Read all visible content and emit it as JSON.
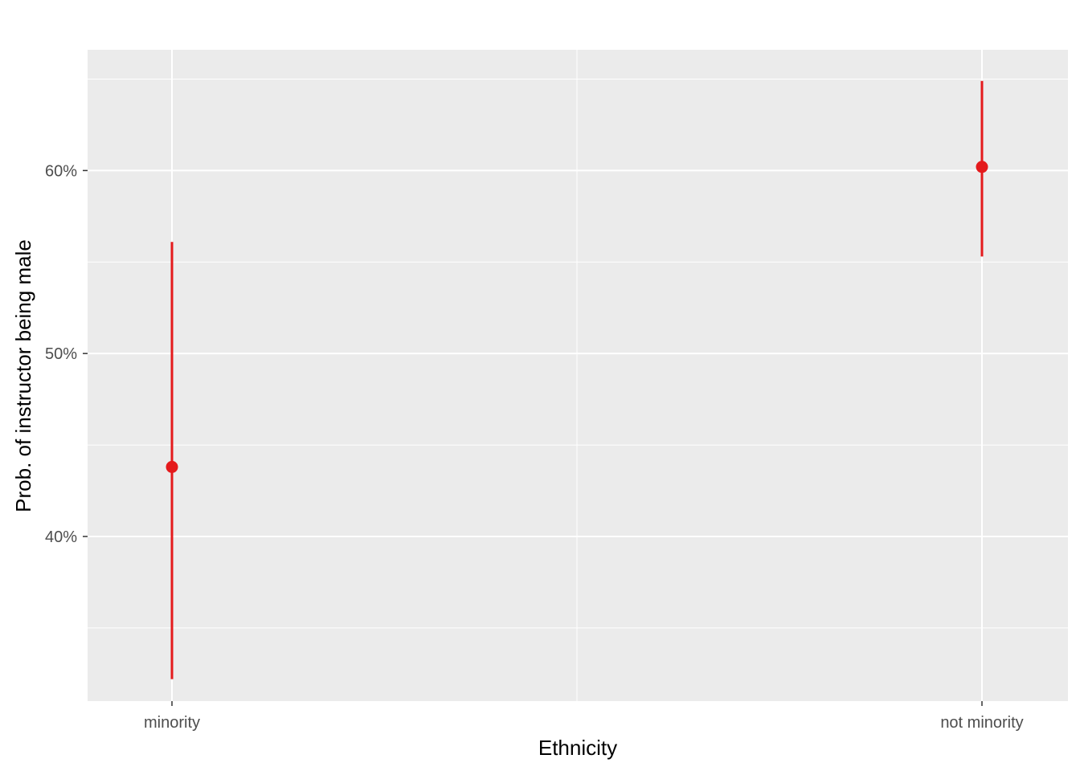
{
  "chart_data": {
    "type": "scatter",
    "subtype": "point-errorbar",
    "title": "",
    "xlabel": "Ethnicity",
    "ylabel": "Prob. of instructor being male",
    "categories": [
      "minority",
      "not minority"
    ],
    "values": [
      0.438,
      0.602
    ],
    "lower": [
      0.322,
      0.553
    ],
    "upper": [
      0.561,
      0.649
    ],
    "ylim": [
      0.31,
      0.666
    ],
    "yticks": [
      0.4,
      0.5,
      0.6
    ],
    "ytick_labels": [
      "40%",
      "50%",
      "60%"
    ],
    "grid": true,
    "legend": "none",
    "colors": {
      "point": "#e41a1c",
      "panel": "#ebebeb",
      "grid": "#ffffff"
    }
  }
}
